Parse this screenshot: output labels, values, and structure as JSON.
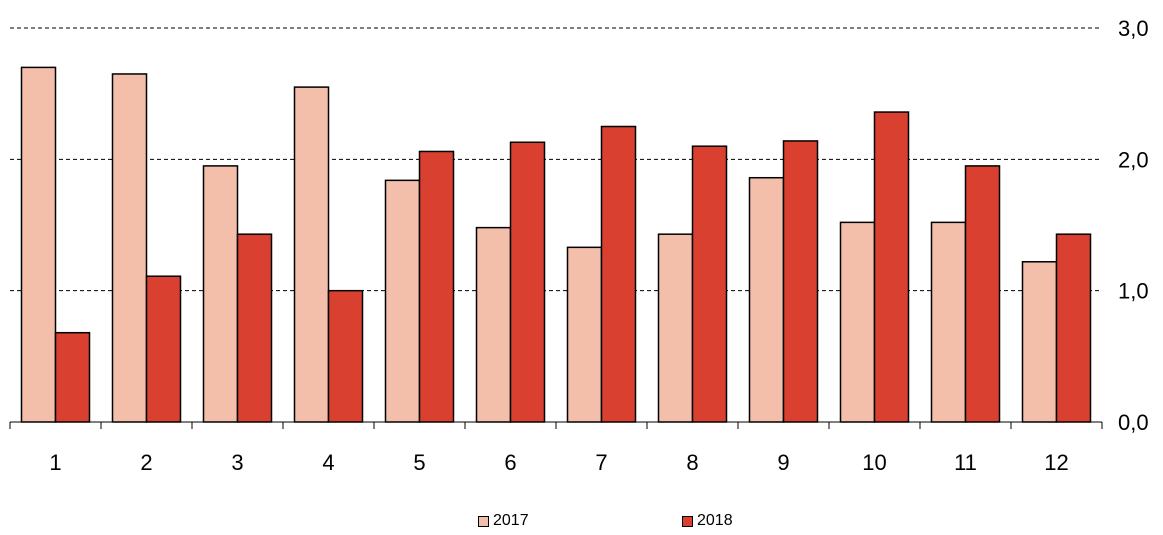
{
  "chart_data": {
    "type": "bar",
    "categories": [
      "1",
      "2",
      "3",
      "4",
      "5",
      "6",
      "7",
      "8",
      "9",
      "10",
      "11",
      "12"
    ],
    "series": [
      {
        "name": "2017",
        "color": "#f4bfaa",
        "values": [
          2.7,
          2.65,
          1.95,
          2.55,
          1.84,
          1.48,
          1.33,
          1.43,
          1.86,
          1.52,
          1.52,
          1.22
        ]
      },
      {
        "name": "2018",
        "color": "#d94030",
        "values": [
          0.68,
          1.11,
          1.43,
          1.0,
          2.06,
          2.13,
          2.25,
          2.1,
          2.14,
          2.36,
          1.95,
          1.43
        ]
      }
    ],
    "y_ticks": [
      "0,0",
      "1,0",
      "2,0",
      "3,0"
    ],
    "ylim": [
      0,
      3
    ],
    "y_axis_position": "right",
    "grid": "horizontal dashed",
    "legend_position": "bottom"
  }
}
